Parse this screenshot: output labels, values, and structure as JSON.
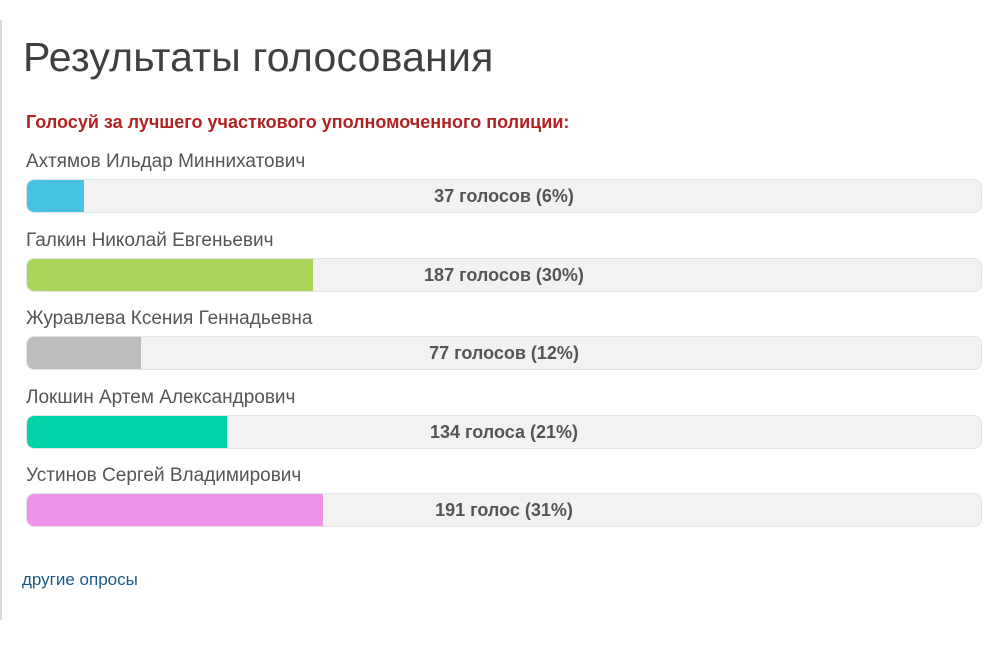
{
  "title": "Результаты голосования",
  "question": "Голосуй за лучшего участкового уполномоченного полиции:",
  "options": [
    {
      "name": "Ахтямов Ильдар Миннихатович",
      "result": "37 голосов (6%)",
      "percent": 6,
      "color": "#45c3e0"
    },
    {
      "name": "Галкин Николай Евгеньевич",
      "result": "187 голосов (30%)",
      "percent": 30,
      "color": "#a8d55a"
    },
    {
      "name": "Журавлева Ксения Геннадьевна",
      "result": "77 голосов (12%)",
      "percent": 12,
      "color": "#bdbdbd"
    },
    {
      "name": "Локшин Артем Александрович",
      "result": "134 голоса (21%)",
      "percent": 21,
      "color": "#00d1a6"
    },
    {
      "name": "Устинов Сергей Владимирович",
      "result": "191 голос (31%)",
      "percent": 31,
      "color": "#ee93e8"
    }
  ],
  "footer_link": "другие опросы"
}
